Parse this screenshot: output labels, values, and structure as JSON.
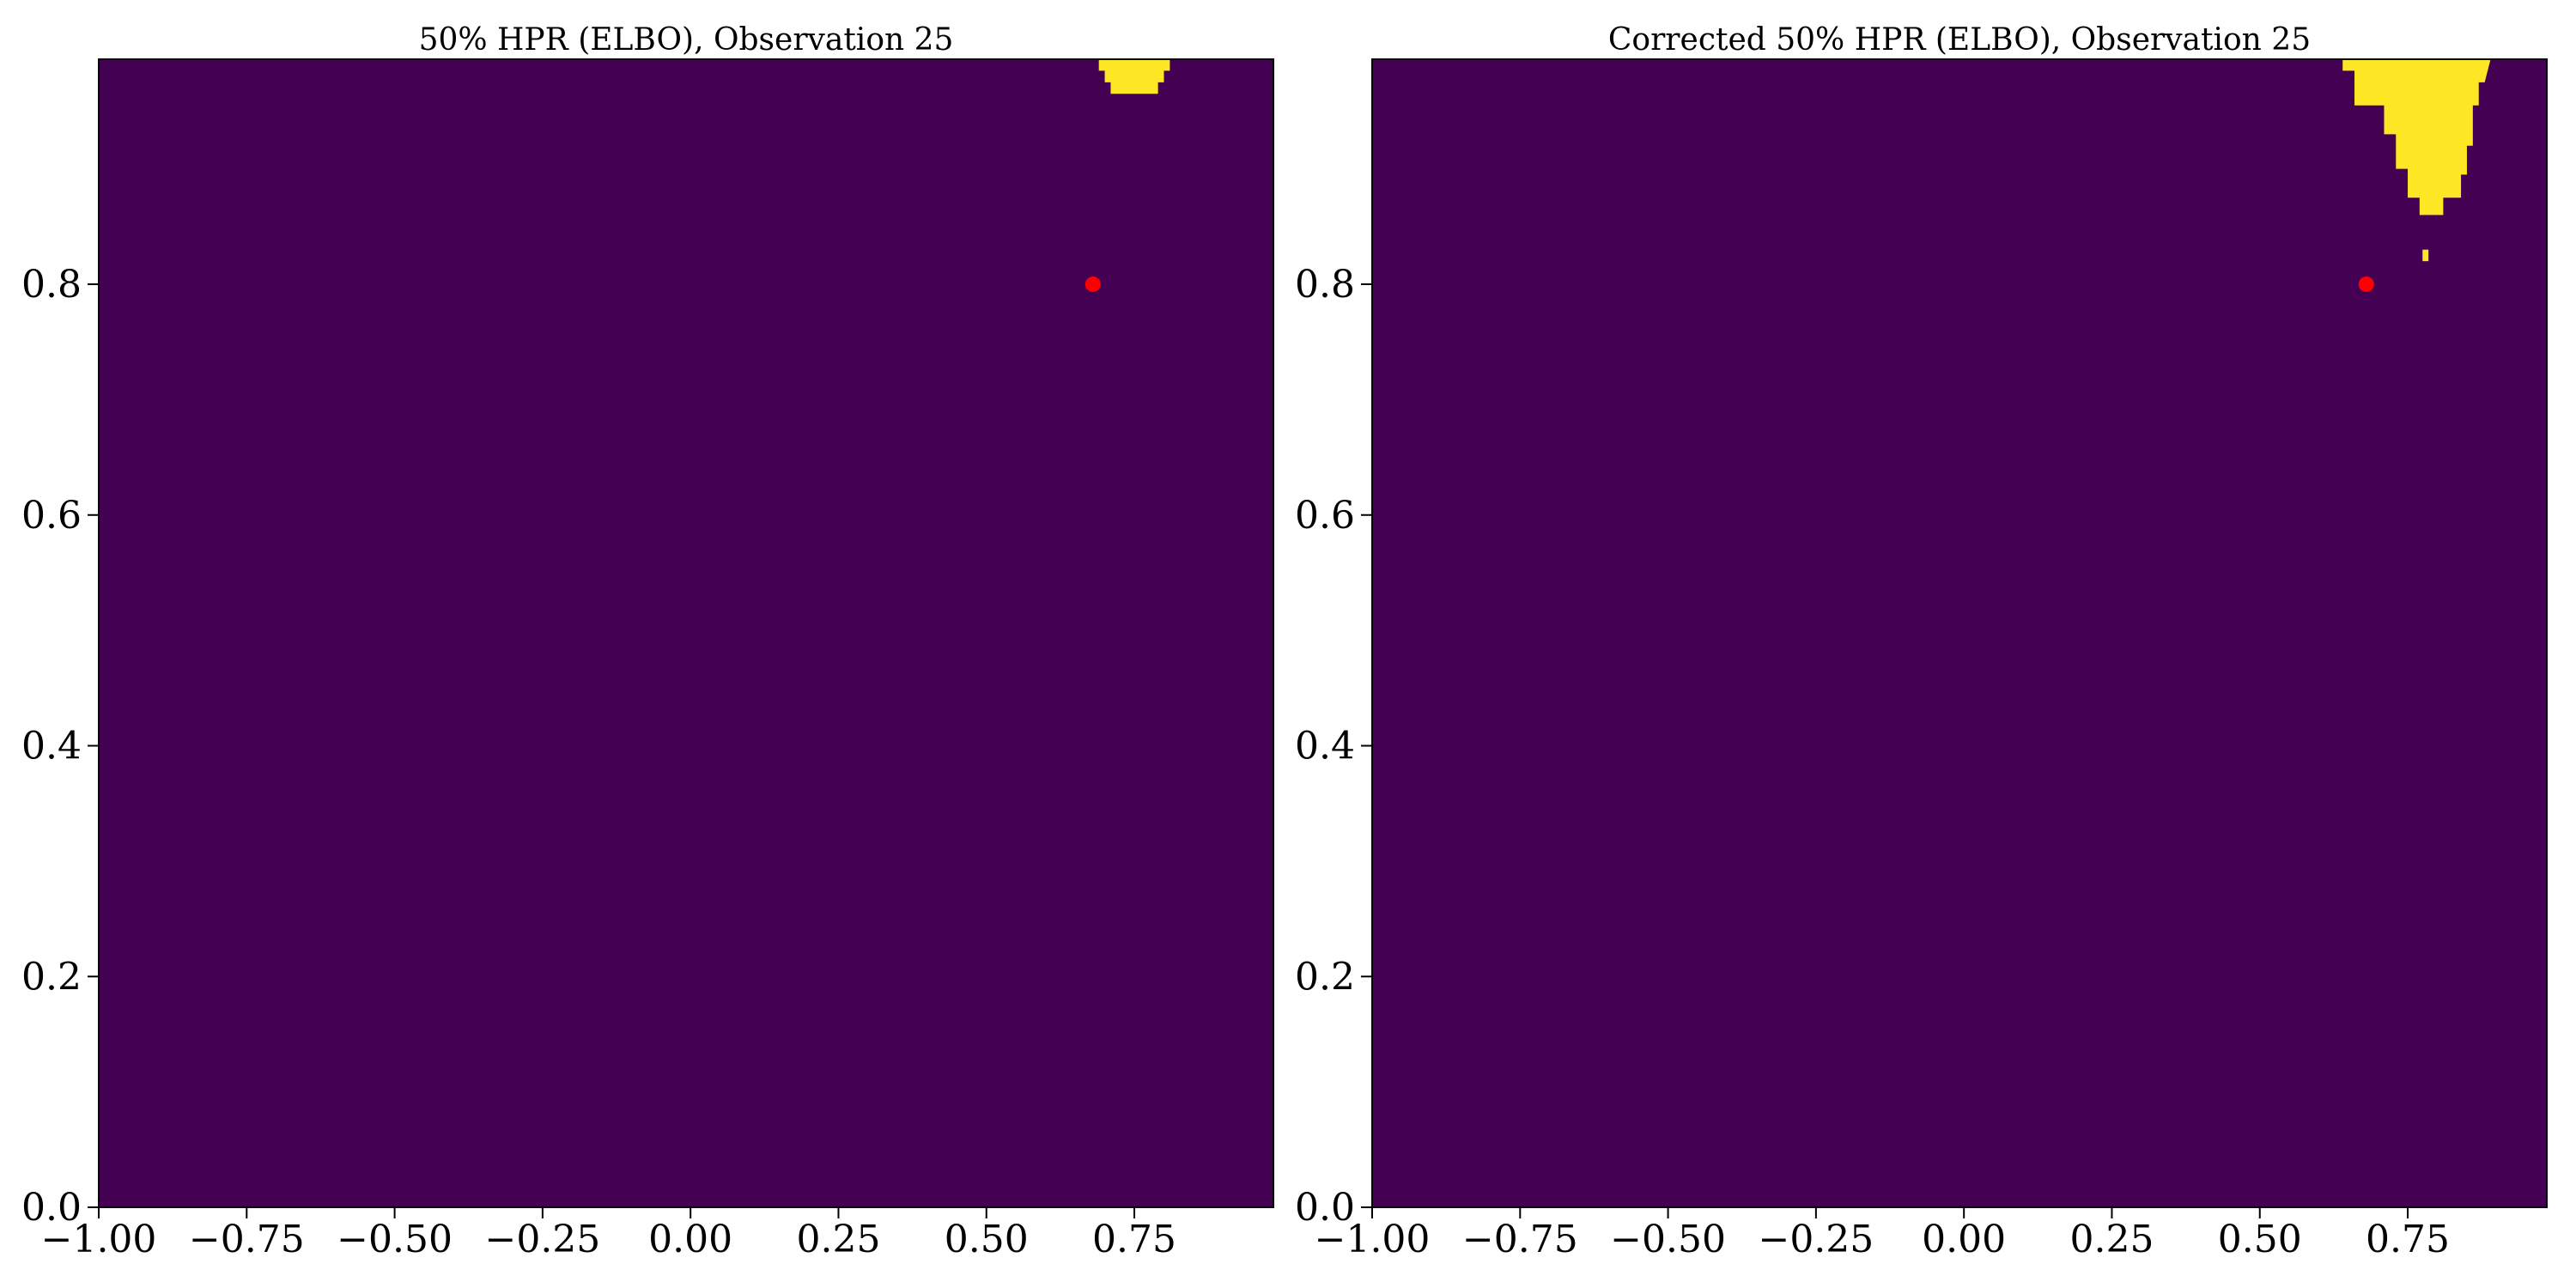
{
  "chart_data": [
    {
      "type": "heatmap",
      "title": "50% HPR (ELBO), Observation 25",
      "xlim": [
        -1,
        0.985
      ],
      "ylim": [
        0,
        0.995
      ],
      "xticks": [
        {
          "value": -1,
          "label": "−1.00"
        },
        {
          "value": -0.75,
          "label": "−0.75"
        },
        {
          "value": -0.5,
          "label": "−0.50"
        },
        {
          "value": -0.25,
          "label": "−0.25"
        },
        {
          "value": 0,
          "label": "0.00"
        },
        {
          "value": 0.25,
          "label": "0.25"
        },
        {
          "value": 0.5,
          "label": "0.50"
        },
        {
          "value": 0.75,
          "label": "0.75"
        }
      ],
      "yticks": [
        {
          "value": 0,
          "label": "0.0"
        },
        0.2,
        0.4,
        0.6,
        0.8
      ],
      "background_color": "#440154",
      "region_color": "#fde725",
      "point_color": "#ff0000",
      "regions": [
        {
          "x": [
            0.69,
            0.81,
            0.81,
            0.8,
            0.8,
            0.79,
            0.79,
            0.71,
            0.71,
            0.7,
            0.7,
            0.69
          ],
          "y": [
            0.995,
            0.995,
            0.985,
            0.985,
            0.975,
            0.975,
            0.965,
            0.965,
            0.975,
            0.975,
            0.985,
            0.985
          ]
        }
      ],
      "points": {
        "x": [
          0.68
        ],
        "y": [
          0.8
        ]
      }
    },
    {
      "type": "heatmap",
      "title": "Corrected 50% HPR (ELBO), Observation 25",
      "xlim": [
        -1,
        0.985
      ],
      "ylim": [
        0,
        0.995
      ],
      "xticks": [
        {
          "value": -1,
          "label": "−1.00"
        },
        {
          "value": -0.75,
          "label": "−0.75"
        },
        {
          "value": -0.5,
          "label": "−0.50"
        },
        {
          "value": -0.25,
          "label": "−0.25"
        },
        {
          "value": 0,
          "label": "0.00"
        },
        {
          "value": 0.25,
          "label": "0.25"
        },
        {
          "value": 0.5,
          "label": "0.50"
        },
        {
          "value": 0.75,
          "label": "0.75"
        }
      ],
      "yticks": [
        {
          "value": 0,
          "label": "0.0"
        },
        0.2,
        0.4,
        0.6,
        0.8
      ],
      "background_color": "#440154",
      "region_color": "#fde725",
      "point_color": "#ff0000",
      "regions": [
        {
          "x": [
            0.64,
            0.89,
            0.88,
            0.87,
            0.87,
            0.86,
            0.86,
            0.85,
            0.85,
            0.84,
            0.84,
            0.81,
            0.81,
            0.77,
            0.77,
            0.75,
            0.75,
            0.73,
            0.73,
            0.71,
            0.71,
            0.66,
            0.66,
            0.64
          ],
          "y": [
            0.995,
            0.995,
            0.975,
            0.975,
            0.955,
            0.955,
            0.92,
            0.92,
            0.895,
            0.895,
            0.875,
            0.875,
            0.86,
            0.86,
            0.875,
            0.875,
            0.9,
            0.9,
            0.93,
            0.93,
            0.955,
            0.955,
            0.985,
            0.985
          ]
        },
        {
          "x": [
            0.775,
            0.785,
            0.785,
            0.775
          ],
          "y": [
            0.83,
            0.83,
            0.82,
            0.82
          ]
        }
      ],
      "points": {
        "x": [
          0.68
        ],
        "y": [
          0.8
        ]
      }
    }
  ]
}
